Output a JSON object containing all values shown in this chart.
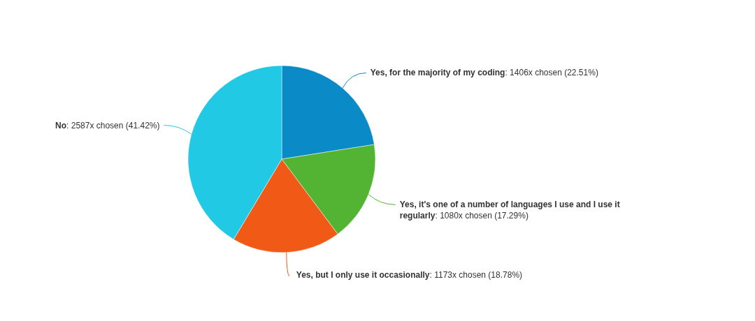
{
  "chart_data": {
    "type": "pie",
    "categories": [
      "Yes, for the majority of my coding",
      "Yes, it's one of a number of languages I use and I use it regularly",
      "Yes, but I only use it occasionally",
      "No"
    ],
    "values": [
      1406,
      1080,
      1173,
      2587
    ],
    "colors": [
      "#0a8ac6",
      "#52b432",
      "#f05a16",
      "#21c9e5"
    ],
    "value_labels": [
      ": 1406x chosen (22.51%)",
      ": 1080x chosen (17.29%)",
      ": 1173x chosen (18.78%)",
      ": 2587x chosen (41.42%)"
    ]
  }
}
